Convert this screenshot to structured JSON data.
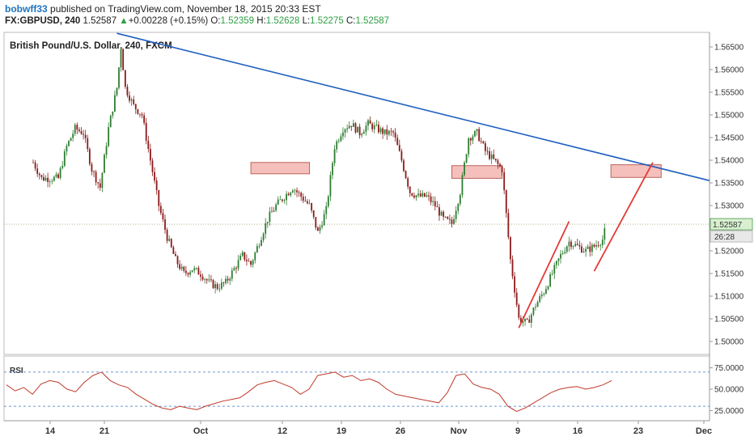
{
  "header": {
    "user": "bobwff33",
    "published": "published on TradingView.com, November 18, 2015 20:33 EST",
    "symbol": "FX:GBPUSD, 240",
    "last": "1.52587",
    "change_arrow": "▲",
    "change": "+0.00228 (+0.15%)",
    "o_label": "O:",
    "o": "1.52359",
    "h_label": "H:",
    "h": "1.52628",
    "l_label": "L:",
    "l": "1.52275",
    "c_label": "C:",
    "c": "1.52587"
  },
  "colors": {
    "up_candle": "#2e7d32",
    "down_candle": "#8b1a1a",
    "trendline": "#1f5fbf",
    "red_line": "#e53935",
    "zone_fill": "#f4b6b0",
    "zone_stroke": "#b04a40",
    "rsi_line": "#c0392b",
    "rsi_band": "#3a75c4",
    "price_label_bg": "#d8f0d0"
  },
  "chart_data": [
    {
      "type": "candlestick",
      "title": "British Pound/U.S. Dollar, 240, FXCM",
      "ylim": [
        1.4975,
        1.5675
      ],
      "yticks": [
        "1.50000",
        "1.50500",
        "1.51000",
        "1.51500",
        "1.52000",
        "1.52500",
        "1.53000",
        "1.53500",
        "1.54000",
        "1.54500",
        "1.55000",
        "1.55500",
        "1.56000",
        "1.56500"
      ],
      "last_price_label": "1.52587",
      "countdown_label": "26:28",
      "xticks": [
        "14",
        "21",
        "Oct",
        "12",
        "19",
        "26",
        "Nov",
        "9",
        "16",
        "23",
        "Dec"
      ],
      "close_path": [
        [
          "Sep 11",
          1.5395
        ],
        [
          "Sep 12",
          1.536
        ],
        [
          "Sep 14",
          1.536
        ],
        [
          "Sep 15",
          1.543
        ],
        [
          "Sep 16",
          1.547
        ],
        [
          "Sep 17",
          1.546
        ],
        [
          "Sep 18",
          1.538
        ],
        [
          "Sep 19",
          1.534
        ],
        [
          "Sep 20",
          1.547
        ],
        [
          "Sep 21",
          1.556
        ],
        [
          "Sep 21b",
          1.565
        ],
        [
          "Sep 22",
          1.556
        ],
        [
          "Sep 23",
          1.552
        ],
        [
          "Sep 24",
          1.55
        ],
        [
          "Sep 25",
          1.54
        ],
        [
          "Sep 26",
          1.53
        ],
        [
          "Sep 27",
          1.523
        ],
        [
          "Sep 28",
          1.518
        ],
        [
          "Sep 29",
          1.515
        ],
        [
          "Sep 30",
          1.516
        ],
        [
          "Oct 1",
          1.515
        ],
        [
          "Oct 2",
          1.513
        ],
        [
          "Oct 3",
          1.512
        ],
        [
          "Oct 4",
          1.513
        ],
        [
          "Oct 5",
          1.516
        ],
        [
          "Oct 6",
          1.519
        ],
        [
          "Oct 7",
          1.517
        ],
        [
          "Oct 8",
          1.522
        ],
        [
          "Oct 9",
          1.527
        ],
        [
          "Oct 10",
          1.53
        ],
        [
          "Oct 11",
          1.532
        ],
        [
          "Oct 12",
          1.534
        ],
        [
          "Oct 13",
          1.532
        ],
        [
          "Oct 14",
          1.53
        ],
        [
          "Oct 15",
          1.524
        ],
        [
          "Oct 16",
          1.529
        ],
        [
          "Oct 17",
          1.543
        ],
        [
          "Oct 18",
          1.547
        ],
        [
          "Oct 19",
          1.548
        ],
        [
          "Oct 20",
          1.546
        ],
        [
          "Oct 21",
          1.548
        ],
        [
          "Oct 22",
          1.547
        ],
        [
          "Oct 23",
          1.546
        ],
        [
          "Oct 24",
          1.546
        ],
        [
          "Oct 25",
          1.54
        ],
        [
          "Oct 26",
          1.533
        ],
        [
          "Oct 27",
          1.532
        ],
        [
          "Oct 28",
          1.532
        ],
        [
          "Oct 29",
          1.53
        ],
        [
          "Oct 30",
          1.527
        ],
        [
          "Oct 31",
          1.526
        ],
        [
          "Nov 1",
          1.533
        ],
        [
          "Nov 2",
          1.545
        ],
        [
          "Nov 3",
          1.546
        ],
        [
          "Nov 4",
          1.542
        ],
        [
          "Nov 5",
          1.54
        ],
        [
          "Nov 6",
          1.538
        ],
        [
          "Nov 7",
          1.518
        ],
        [
          "Nov 8",
          1.505
        ],
        [
          "Nov 9",
          1.504
        ],
        [
          "Nov 10",
          1.508
        ],
        [
          "Nov 11",
          1.511
        ],
        [
          "Nov 12",
          1.515
        ],
        [
          "Nov 13",
          1.519
        ],
        [
          "Nov 14",
          1.522
        ],
        [
          "Nov 15",
          1.521
        ],
        [
          "Nov 16",
          1.52
        ],
        [
          "Nov 17",
          1.521
        ],
        [
          "Nov 18",
          1.5225
        ],
        [
          "Nov 18b",
          1.5259
        ]
      ],
      "annotations": {
        "descending_trendline": [
          [
            "Sep 21",
            1.568
          ],
          [
            "Dec",
            1.5355
          ]
        ],
        "red_lines": [
          [
            [
              "Nov 8",
              1.503
            ],
            [
              "Nov 14",
              1.5265
            ]
          ],
          [
            [
              "Nov 17",
              1.5155
            ],
            [
              "Nov 24",
              1.5395
            ]
          ]
        ],
        "resistance_zones": [
          {
            "from": "Oct 7",
            "to": "Oct 14",
            "low": 1.537,
            "high": 1.5395
          },
          {
            "from": "Oct 31",
            "to": "Nov 6",
            "low": 1.536,
            "high": 1.5388
          },
          {
            "from": "Nov 19",
            "to": "Nov 25",
            "low": 1.5362,
            "high": 1.539
          }
        ]
      }
    },
    {
      "type": "line",
      "title": "RSI",
      "ylim": [
        15,
        85
      ],
      "yticks": [
        "25.0000",
        "50.0000",
        "75.0000"
      ],
      "bands": [
        30,
        70
      ],
      "values": [
        55,
        48,
        52,
        44,
        56,
        60,
        58,
        50,
        47,
        58,
        66,
        70,
        60,
        55,
        52,
        44,
        38,
        32,
        28,
        26,
        30,
        28,
        26,
        30,
        33,
        36,
        38,
        40,
        47,
        55,
        58,
        60,
        56,
        52,
        44,
        50,
        66,
        68,
        70,
        64,
        66,
        60,
        62,
        58,
        50,
        44,
        42,
        40,
        38,
        36,
        34,
        46,
        66,
        68,
        56,
        52,
        50,
        44,
        30,
        24,
        28,
        34,
        40,
        46,
        50,
        52,
        53,
        50,
        52,
        55,
        60
      ]
    }
  ]
}
